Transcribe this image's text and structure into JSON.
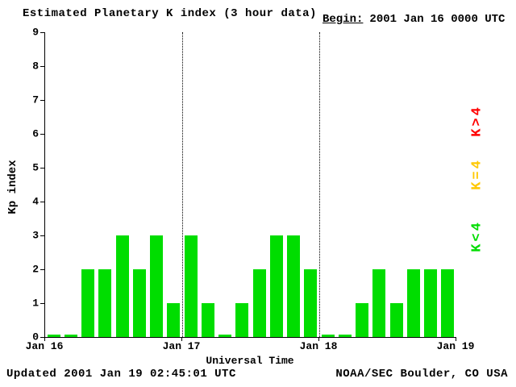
{
  "header": {
    "title": "Estimated Planetary K index (3 hour data)",
    "begin_label": "Begin:",
    "begin_value": "2001 Jan 16 0000 UTC"
  },
  "legend": {
    "items": [
      {
        "label": "K>4",
        "color": "#ff0000"
      },
      {
        "label": "K=4",
        "color": "#ffc800"
      },
      {
        "label": "K<4",
        "color": "#00dd00"
      }
    ]
  },
  "footer": {
    "updated": "Updated 2001 Jan 19 02:45:01 UTC",
    "source": "NOAA/SEC Boulder, CO USA"
  },
  "chart_data": {
    "type": "bar",
    "title": "Estimated Planetary K index (3 hour data)",
    "xlabel": "Universal Time",
    "ylabel": "Kp index",
    "ylim": [
      0,
      9
    ],
    "yticks": [
      0,
      1,
      2,
      3,
      4,
      5,
      6,
      7,
      8,
      9
    ],
    "x_tick_labels": [
      "Jan 16",
      "Jan 17",
      "Jan 18",
      "Jan 19"
    ],
    "bars_per_day": 8,
    "bar_color": "#00dd00",
    "values": [
      0,
      0,
      2,
      2,
      3,
      2,
      3,
      1,
      3,
      1,
      0,
      1,
      2,
      3,
      3,
      2,
      0,
      0,
      1,
      2,
      1,
      2,
      2,
      2
    ],
    "grid": "dotted vertical lines at day boundaries",
    "legend_position": "right"
  }
}
